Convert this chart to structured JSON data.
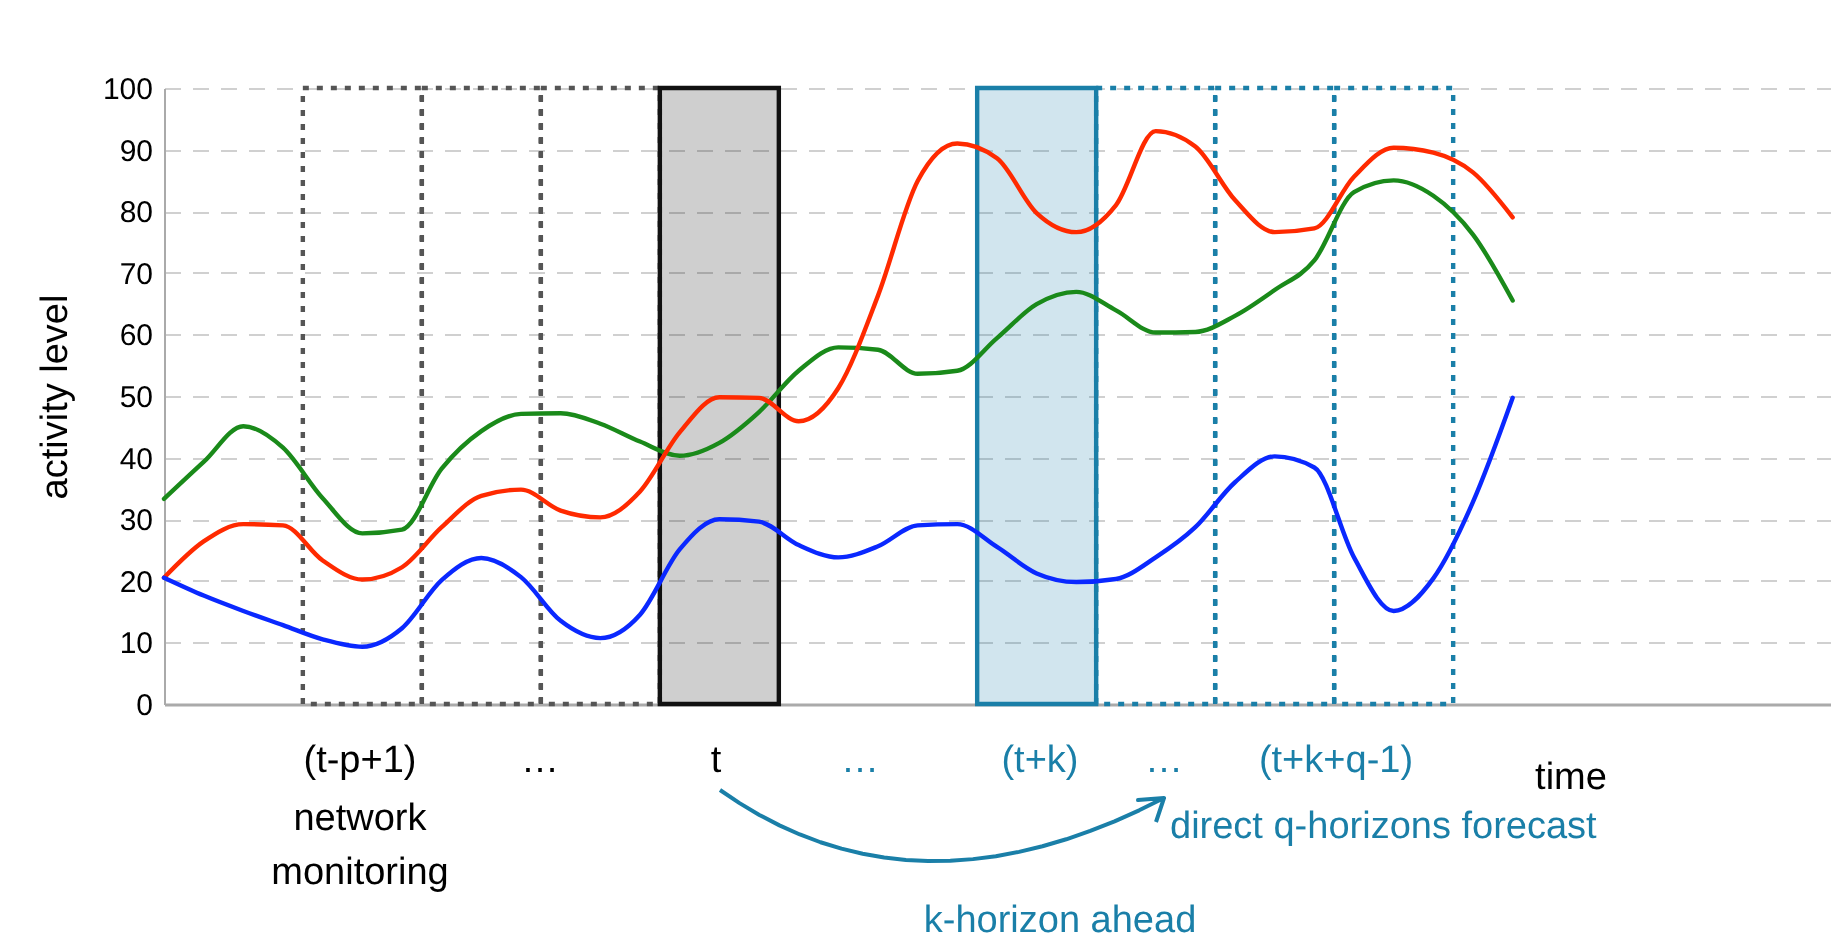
{
  "chart_data": {
    "type": "line",
    "ylabel": "activity level",
    "xlabel": "time",
    "categories": [
      null,
      null,
      null,
      null,
      null,
      null,
      null,
      null,
      null,
      null,
      null,
      null,
      null,
      null,
      null,
      null,
      null,
      null,
      null,
      null,
      null,
      null,
      null,
      null,
      null,
      null,
      null,
      null,
      null,
      null,
      null,
      null,
      null,
      null,
      null
    ],
    "ylim": [
      0,
      100
    ],
    "yticks": [
      0,
      10,
      20,
      30,
      40,
      50,
      60,
      70,
      80,
      90,
      100
    ],
    "tick_labels": "y",
    "grid": "y",
    "legend": false,
    "line_style": "solid",
    "marker": "none",
    "series": [
      {
        "color": "#1a8a1a",
        "values": [
          33.3,
          39.3,
          45.1,
          41.6,
          33.4,
          27.7,
          28.3,
          38.2,
          44.3,
          47.1,
          47.2,
          45.5,
          42.6,
          40.3,
          42.4,
          47.4,
          54.1,
          57.9,
          57.5,
          53.6,
          54.1,
          59.4,
          64.9,
          66.9,
          63.9,
          60.3,
          60.4,
          63,
          67.2,
          72,
          83.1,
          85,
          82.5,
          76.2,
          65.5
        ]
      },
      {
        "color": "#ff2a00",
        "values": [
          20.5,
          26.4,
          29.2,
          29,
          23.3,
          20.2,
          22.2,
          28.7,
          33.8,
          34.8,
          31.4,
          30.3,
          34.5,
          44.1,
          49.8,
          49.7,
          45.9,
          51.3,
          66.3,
          84.9,
          91,
          88.6,
          79.7,
          76.6,
          81,
          93,
          90.5,
          81.8,
          76.6,
          77.2,
          85.6,
          90.3,
          89.5,
          86.3,
          79
        ]
      },
      {
        "color": "#0a28ff",
        "values": [
          20.5,
          17.6,
          15.1,
          12.8,
          10.5,
          9.3,
          12.3,
          20.1,
          23.7,
          20.6,
          13.5,
          10.7,
          14.5,
          25.1,
          30,
          29.6,
          25.8,
          23.8,
          25.6,
          29,
          29.2,
          25.5,
          21.2,
          19.8,
          20.3,
          23.8,
          28.7,
          36,
          40.2,
          38.4,
          23.8,
          15.1,
          20.4,
          32.8,
          49.7
        ]
      }
    ],
    "annotations": [
      "(t-p+1)",
      "…",
      "t",
      "…",
      "(t+k)",
      "…",
      "(t+k+q-1)",
      "network monitoring",
      "direct q-horizons forecast",
      "k-horizon ahead"
    ]
  }
}
